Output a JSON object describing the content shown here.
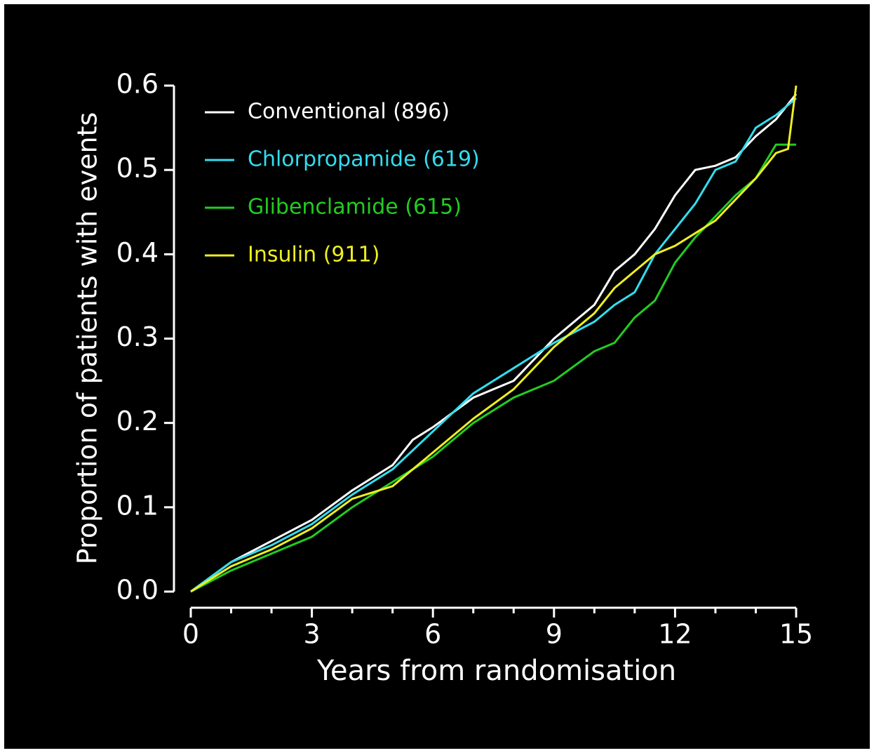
{
  "chart_data": {
    "type": "line",
    "step": true,
    "xlabel": "Years from randomisation",
    "ylabel": "Proportion of patients with events",
    "xlim": [
      0,
      15
    ],
    "xticks": [
      0,
      3,
      6,
      9,
      12,
      15
    ],
    "xminorticks": [
      1,
      2,
      4,
      5,
      7,
      8,
      10,
      11,
      13,
      14
    ],
    "ylim": [
      0,
      0.6
    ],
    "yticks": [
      {
        "value": 0,
        "label": "0.0"
      },
      0.1,
      0.2,
      0.3,
      0.4,
      0.5,
      0.6
    ],
    "legend": "upper left",
    "series": [
      {
        "name": "Conventional (896)",
        "color": "#ffffff",
        "x": [
          0,
          1,
          2,
          3,
          4,
          5,
          5.5,
          6,
          7,
          8,
          9,
          10,
          10.5,
          11,
          11.5,
          12,
          12.5,
          13,
          13.5,
          14,
          14.5,
          15
        ],
        "values": [
          0,
          0.035,
          0.06,
          0.085,
          0.12,
          0.15,
          0.18,
          0.195,
          0.23,
          0.25,
          0.3,
          0.34,
          0.38,
          0.4,
          0.43,
          0.47,
          0.5,
          0.505,
          0.515,
          0.54,
          0.56,
          0.59
        ]
      },
      {
        "name": "Chlorpropamide (619)",
        "color": "#33ddee",
        "x": [
          0,
          1,
          2,
          3,
          4,
          5,
          6,
          7,
          8,
          9,
          10,
          10.5,
          11,
          11.5,
          12,
          12.5,
          13,
          13.5,
          14,
          14.5,
          15
        ],
        "values": [
          0,
          0.035,
          0.055,
          0.08,
          0.115,
          0.145,
          0.19,
          0.235,
          0.265,
          0.295,
          0.32,
          0.34,
          0.355,
          0.4,
          0.43,
          0.46,
          0.5,
          0.51,
          0.55,
          0.565,
          0.585
        ]
      },
      {
        "name": "Glibenclamide (615)",
        "color": "#22cc22",
        "x": [
          0,
          1,
          2,
          3,
          4,
          5,
          6,
          7,
          8,
          9,
          10,
          10.5,
          11,
          11.5,
          12,
          12.5,
          13,
          13.5,
          14,
          14.5,
          15
        ],
        "values": [
          0,
          0.025,
          0.045,
          0.065,
          0.1,
          0.13,
          0.16,
          0.2,
          0.23,
          0.25,
          0.285,
          0.295,
          0.325,
          0.345,
          0.39,
          0.42,
          0.445,
          0.47,
          0.49,
          0.53,
          0.53
        ]
      },
      {
        "name": "Insulin (911)",
        "color": "#eeee22",
        "x": [
          0,
          1,
          2,
          3,
          4,
          5,
          6,
          7,
          8,
          9,
          10,
          10.5,
          11,
          11.5,
          12,
          12.5,
          13,
          13.5,
          14,
          14.5,
          14.8,
          15
        ],
        "values": [
          0,
          0.03,
          0.05,
          0.075,
          0.11,
          0.125,
          0.165,
          0.205,
          0.24,
          0.29,
          0.33,
          0.36,
          0.38,
          0.4,
          0.41,
          0.425,
          0.44,
          0.465,
          0.49,
          0.52,
          0.525,
          0.6
        ]
      }
    ]
  }
}
